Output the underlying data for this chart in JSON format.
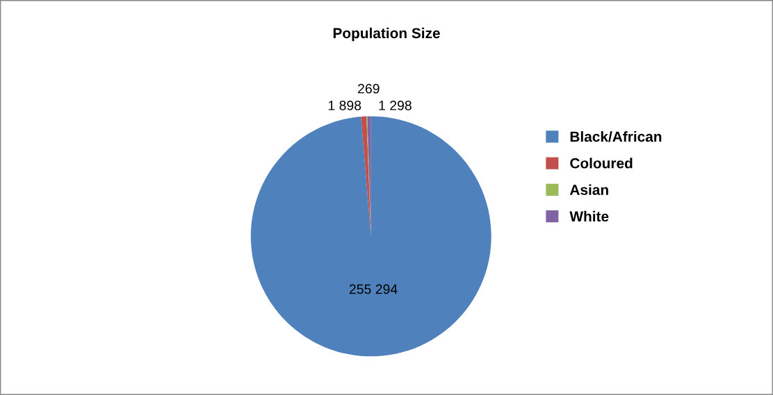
{
  "chart_data": {
    "type": "pie",
    "title": "Population Size",
    "categories": [
      "Black/African",
      "Coloured",
      "Asian",
      "White"
    ],
    "values": [
      255294,
      1898,
      269,
      1298
    ],
    "colors": [
      "#4f81bd",
      "#c0504d",
      "#9bbb59",
      "#8064a2"
    ],
    "value_labels": [
      "255 294",
      "1 898",
      "269",
      "1 298"
    ],
    "legend": "right"
  }
}
